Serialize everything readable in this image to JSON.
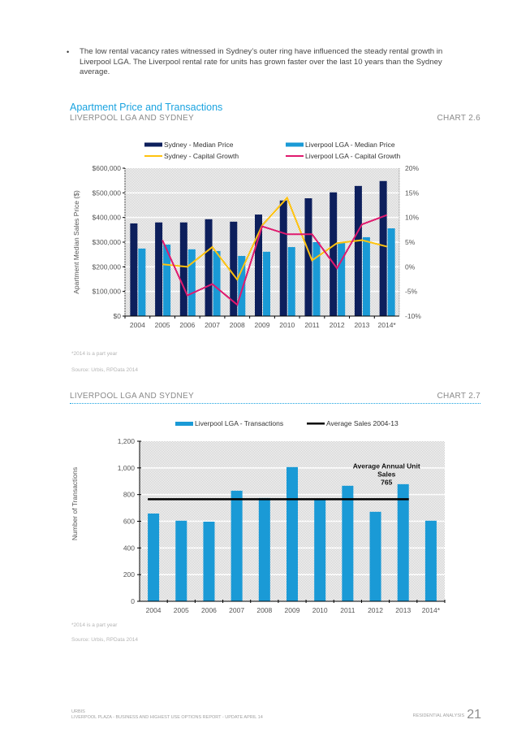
{
  "bullet": {
    "symbol": "•",
    "text": "The low rental vacancy rates witnessed in Sydney’s outer ring have influenced the steady rental growth in Liverpool LGA.  The Liverpool rental rate for units has grown faster over the last 10 years than the Sydney average."
  },
  "section_title": "Apartment Price and Transactions",
  "chart1_header": {
    "subtitle": "LIVERPOOL LGA AND SYDNEY",
    "label": "CHART 2.6"
  },
  "chart1_notes": {
    "note": "*2014 is a part year",
    "source": "Source: Urbis, RPData 2014"
  },
  "chart2_header": {
    "subtitle": "LIVERPOOL LGA AND SYDNEY",
    "label": "CHART 2.7"
  },
  "chart2_notes": {
    "note": "*2014 is a part year",
    "source": "Source: Urbis, RPData 2014"
  },
  "footer": {
    "company": "URBIS",
    "report": "LIVERPOOL PLAZA - BUSINESS AND HIGHEST USE OPTIONS REPORT - UPDATE APRIL 14",
    "section": "RESIDENTIAL ANALYSIS",
    "page_number": "21"
  },
  "colors": {
    "sydney_price": "#0d1f5c",
    "liverpool_price": "#1a9ad6",
    "sydney_growth": "#ffc20e",
    "liverpool_growth": "#e0196e",
    "transactions": "#1a9ad6",
    "average": "#000000",
    "accent": "#1aa3e0"
  },
  "chart_data": [
    {
      "type": "bar",
      "title": "Apartment Price and Transactions",
      "categories": [
        "2004",
        "2005",
        "2006",
        "2007",
        "2008",
        "2009",
        "2010",
        "2011",
        "2012",
        "2013",
        "2014*"
      ],
      "ylabel": "Apartment Median Sales Price ($)",
      "ylim": [
        0,
        600000
      ],
      "yticks": [
        "$0",
        "$100,000",
        "$200,000",
        "$300,000",
        "$400,000",
        "$500,000",
        "$600,000"
      ],
      "y2lim": [
        -10,
        20
      ],
      "y2ticks": [
        "-10%",
        "-5%",
        "0%",
        "5%",
        "10%",
        "15%",
        "20%"
      ],
      "grid": true,
      "legend_position": "top",
      "series": [
        {
          "name": "Sydney - Median Price",
          "kind": "bar",
          "axis": "left",
          "values": [
            376000,
            380000,
            380000,
            393000,
            383000,
            412000,
            469000,
            478000,
            502000,
            528000,
            548000
          ]
        },
        {
          "name": "Liverpool LGA - Median Price",
          "kind": "bar",
          "axis": "left",
          "values": [
            274000,
            290000,
            271000,
            264000,
            244000,
            261000,
            280000,
            300000,
            300000,
            320000,
            356000
          ]
        },
        {
          "name": "Sydney - Capital Growth",
          "kind": "line",
          "axis": "right",
          "values": [
            null,
            0.5,
            0.0,
            4.0,
            -2.6,
            8.4,
            14.0,
            1.3,
            4.8,
            5.4,
            4.1
          ]
        },
        {
          "name": "Liverpool LGA - Capital Growth",
          "kind": "line",
          "axis": "right",
          "values": [
            null,
            5.4,
            -5.8,
            -3.5,
            -7.7,
            8.2,
            6.6,
            6.6,
            -0.3,
            8.6,
            10.5
          ]
        }
      ]
    },
    {
      "type": "bar",
      "title": "LIVERPOOL LGA AND SYDNEY",
      "categories": [
        "2004",
        "2005",
        "2006",
        "2007",
        "2008",
        "2009",
        "2010",
        "2011",
        "2012",
        "2013",
        "2014*"
      ],
      "ylabel": "Number of Transactions",
      "ylim": [
        0,
        1200
      ],
      "yticks": [
        "0",
        "200",
        "400",
        "600",
        "800",
        "1,000",
        "1,200"
      ],
      "grid": true,
      "legend_position": "top",
      "series": [
        {
          "name": "Liverpool LGA - Transactions",
          "kind": "bar",
          "values": [
            658,
            604,
            597,
            829,
            774,
            1006,
            762,
            866,
            671,
            878,
            604
          ]
        },
        {
          "name": "Average Sales 2004-13",
          "kind": "hline",
          "value": 765,
          "span": [
            "2004",
            "2013"
          ]
        }
      ],
      "annotation": {
        "lines": [
          "Average Annual Unit",
          "Sales",
          "765"
        ]
      }
    }
  ]
}
